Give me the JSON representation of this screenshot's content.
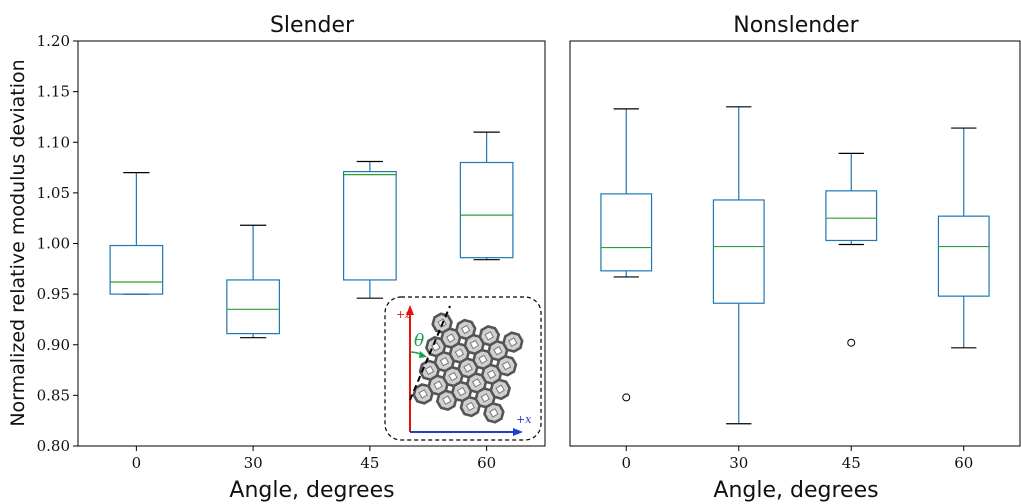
{
  "chart_data": [
    {
      "type": "box",
      "title": "Slender",
      "xlabel": "Angle, degrees",
      "ylabel": "Normalized relative modulus deviation",
      "ylim": [
        0.8,
        1.2
      ],
      "yticks": [
        "0.80",
        "0.85",
        "0.90",
        "0.95",
        "1.00",
        "1.05",
        "1.10",
        "1.15",
        "1.20"
      ],
      "categories": [
        "0",
        "30",
        "45",
        "60"
      ],
      "boxes": [
        {
          "category": "0",
          "whisker_low": 0.95,
          "q1": 0.95,
          "median": 0.962,
          "q3": 0.998,
          "whisker_high": 1.07,
          "outliers": []
        },
        {
          "category": "30",
          "whisker_low": 0.907,
          "q1": 0.911,
          "median": 0.935,
          "q3": 0.964,
          "whisker_high": 1.018,
          "outliers": []
        },
        {
          "category": "45",
          "whisker_low": 0.946,
          "q1": 0.964,
          "median": 1.068,
          "q3": 1.071,
          "whisker_high": 1.081,
          "outliers": []
        },
        {
          "category": "60",
          "whisker_low": 0.984,
          "q1": 0.986,
          "median": 1.028,
          "q3": 1.08,
          "whisker_high": 1.11,
          "outliers": []
        }
      ],
      "inset": {
        "z_label": "+z",
        "x_label": "+x",
        "angle_label": "θ"
      }
    },
    {
      "type": "box",
      "title": "Nonslender",
      "xlabel": "Angle, degrees",
      "ylim": [
        0.8,
        1.2
      ],
      "categories": [
        "0",
        "30",
        "45",
        "60"
      ],
      "boxes": [
        {
          "category": "0",
          "whisker_low": 0.967,
          "q1": 0.973,
          "median": 0.996,
          "q3": 1.049,
          "whisker_high": 1.133,
          "outliers": [
            0.848
          ]
        },
        {
          "category": "30",
          "whisker_low": 0.822,
          "q1": 0.941,
          "median": 0.997,
          "q3": 1.043,
          "whisker_high": 1.135,
          "outliers": []
        },
        {
          "category": "45",
          "whisker_low": 0.999,
          "q1": 1.003,
          "median": 1.025,
          "q3": 1.052,
          "whisker_high": 1.089,
          "outliers": [
            0.902
          ]
        },
        {
          "category": "60",
          "whisker_low": 0.897,
          "q1": 0.948,
          "median": 0.997,
          "q3": 1.027,
          "whisker_high": 1.114,
          "outliers": []
        }
      ]
    }
  ],
  "colors": {
    "box": "#1f77b4",
    "median": "#2ca02c",
    "whisker_cap": "#000000",
    "inset_z_axis": "#e3120b",
    "inset_x_axis": "#1f3fd1",
    "inset_angle": "#16a34a"
  }
}
